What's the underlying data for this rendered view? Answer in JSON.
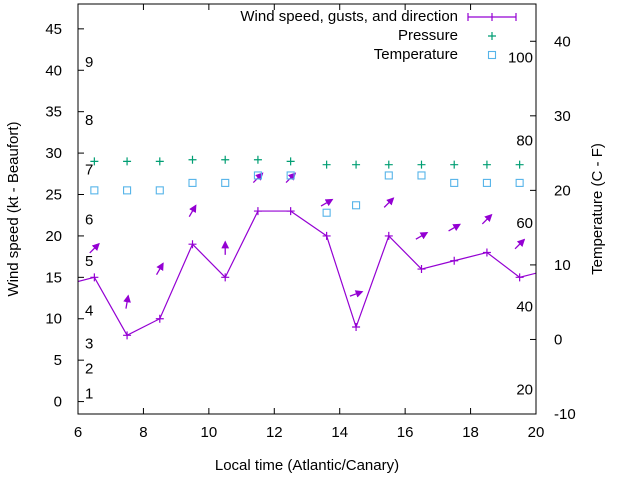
{
  "chart_data": {
    "type": "line",
    "xlabel": "Local time (Atlantic/Canary)",
    "ylabel": "Wind speed (kt - Beaufort)",
    "y2label": "Temperature (C - F)",
    "xlim": [
      6,
      20
    ],
    "ylim": [
      -1.5,
      48
    ],
    "y2lim": [
      -10,
      45
    ],
    "x_ticks": [
      6,
      8,
      10,
      12,
      14,
      16,
      18,
      20
    ],
    "y_ticks": [
      0,
      5,
      10,
      15,
      20,
      25,
      30,
      35,
      40,
      45
    ],
    "y2_ticks": [
      -10,
      0,
      10,
      20,
      30,
      40
    ],
    "beaufort_labels": [
      {
        "label": "1",
        "kt": 1
      },
      {
        "label": "2",
        "kt": 4
      },
      {
        "label": "3",
        "kt": 7
      },
      {
        "label": "4",
        "kt": 11
      },
      {
        "label": "5",
        "kt": 17
      },
      {
        "label": "6",
        "kt": 22
      },
      {
        "label": "7",
        "kt": 28
      },
      {
        "label": "8",
        "kt": 34
      },
      {
        "label": "9",
        "kt": 41
      }
    ],
    "fahrenheit_labels": [
      {
        "label": "20",
        "c": -6.7
      },
      {
        "label": "40",
        "c": 4.4
      },
      {
        "label": "60",
        "c": 15.6
      },
      {
        "label": "80",
        "c": 26.7
      },
      {
        "label": "100",
        "c": 37.8
      }
    ],
    "legend": {
      "placement": "top-right",
      "entries": [
        "Wind speed, gusts, and direction",
        "Pressure",
        "Temperature"
      ]
    },
    "series": [
      {
        "name": "Wind speed, gusts, and direction",
        "color": "#9400d3",
        "x": [
          5.5,
          6.5,
          7.5,
          8.5,
          9.5,
          10.5,
          11.5,
          12.5,
          13.6,
          14.5,
          15.5,
          16.5,
          17.5,
          18.5,
          19.5,
          20.5
        ],
        "values": [
          14,
          15,
          8,
          10,
          19,
          15,
          23,
          23,
          20,
          9,
          20,
          16,
          17,
          18,
          15,
          16
        ],
        "gust_arrows": [
          {
            "x": 6.5,
            "kt": 18.5,
            "dir_deg": 45
          },
          {
            "x": 7.5,
            "kt": 12,
            "dir_deg": 80
          },
          {
            "x": 8.5,
            "kt": 16,
            "dir_deg": 60
          },
          {
            "x": 9.5,
            "kt": 23,
            "dir_deg": 60
          },
          {
            "x": 10.5,
            "kt": 18.5,
            "dir_deg": 90
          },
          {
            "x": 11.5,
            "kt": 27,
            "dir_deg": 45
          },
          {
            "x": 12.5,
            "kt": 27,
            "dir_deg": 45
          },
          {
            "x": 13.6,
            "kt": 24,
            "dir_deg": 30
          },
          {
            "x": 14.5,
            "kt": 13,
            "dir_deg": 20
          },
          {
            "x": 15.5,
            "kt": 24,
            "dir_deg": 45
          },
          {
            "x": 16.5,
            "kt": 20,
            "dir_deg": 30
          },
          {
            "x": 17.5,
            "kt": 21,
            "dir_deg": 30
          },
          {
            "x": 18.5,
            "kt": 22,
            "dir_deg": 45
          },
          {
            "x": 19.5,
            "kt": 19,
            "dir_deg": 45
          }
        ]
      },
      {
        "name": "Pressure",
        "color": "#009e73",
        "x": [
          6.5,
          7.5,
          8.5,
          9.5,
          10.5,
          11.5,
          12.5,
          13.6,
          14.5,
          15.5,
          16.5,
          17.5,
          18.5,
          19.5
        ],
        "values": [
          29,
          29,
          29,
          29.2,
          29.2,
          29.2,
          29,
          28.6,
          28.6,
          28.6,
          28.6,
          28.6,
          28.6,
          28.6
        ]
      },
      {
        "name": "Temperature",
        "color": "#56b4e9",
        "axis": "right",
        "x": [
          6.5,
          7.5,
          8.5,
          9.5,
          10.5,
          11.5,
          12.5,
          13.6,
          14.5,
          15.5,
          16.5,
          17.5,
          18.5,
          19.5
        ],
        "values": [
          20,
          20,
          20,
          21,
          21,
          22,
          22,
          17,
          18,
          22,
          22,
          21,
          21,
          21
        ]
      }
    ]
  }
}
